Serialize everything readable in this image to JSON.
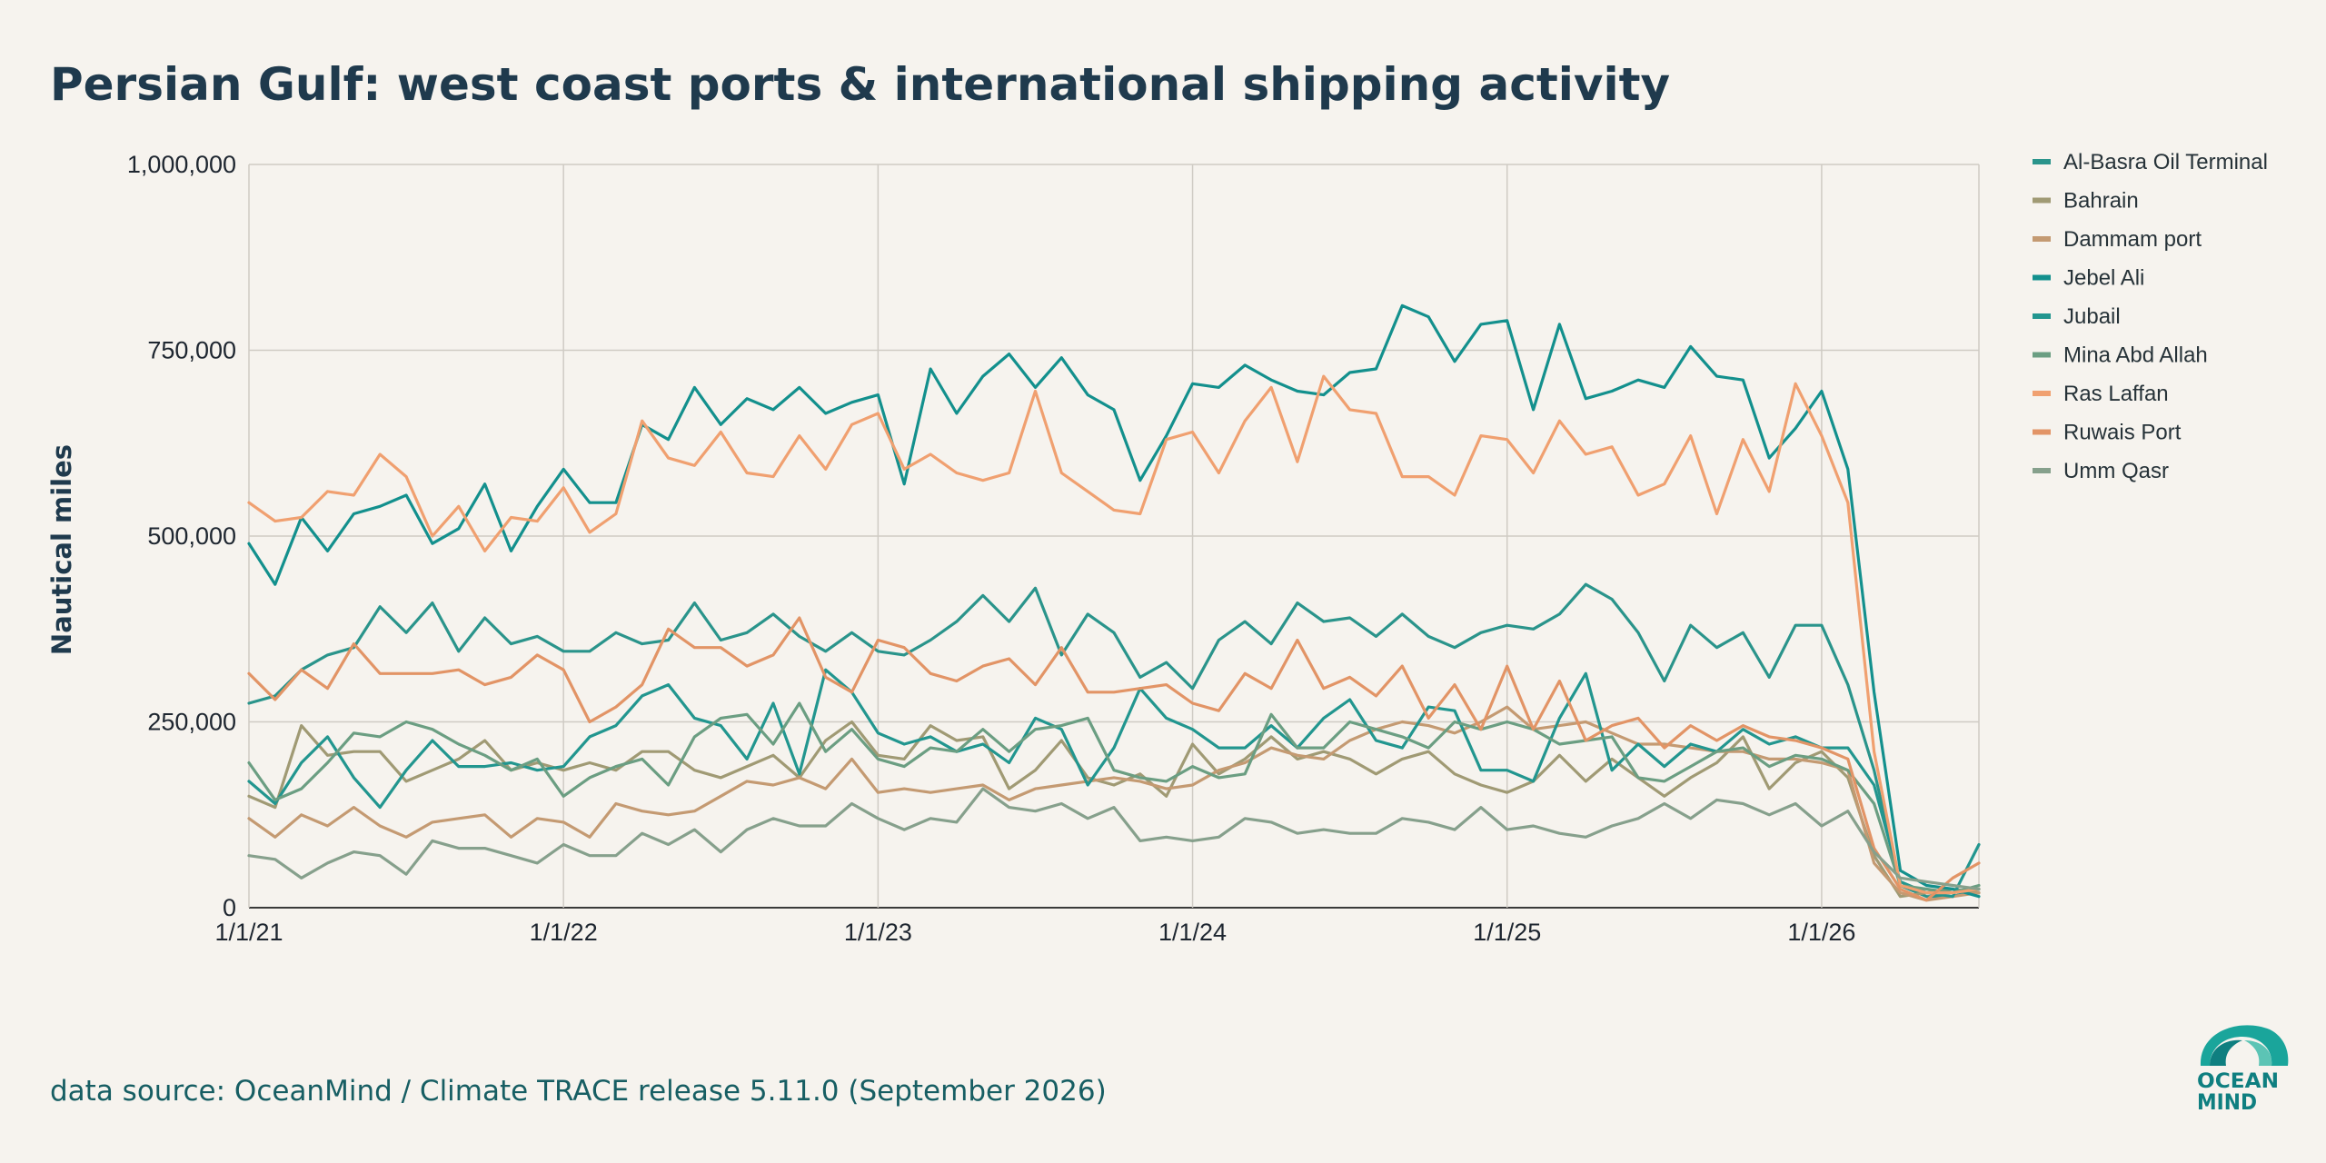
{
  "title": "Persian Gulf: west coast ports & international shipping activity",
  "source": "data source: OceanMind / Climate TRACE release 5.11.0 (September 2026)",
  "logo": {
    "line1": "OCEAN",
    "line2": "MIND",
    "colors": [
      "#0f7f80",
      "#1aa59b",
      "#5cc4b5"
    ]
  },
  "chart_data": {
    "type": "line",
    "title": "Persian Gulf: west coast ports & international shipping activity",
    "xlabel": "",
    "ylabel": "Nautical miles",
    "xlim": [
      "2021-01-01",
      "2026-07-01"
    ],
    "ylim": [
      0,
      1000000
    ],
    "x_ticks": [
      "1/1/21",
      "1/1/22",
      "1/1/23",
      "1/1/24",
      "1/1/25",
      "1/1/26"
    ],
    "y_ticks": [
      "0",
      "250,000",
      "500,000",
      "750,000",
      "1,000,000"
    ],
    "grid": true,
    "legend": "right",
    "x_start": "2021-01",
    "x_step": "1 month",
    "series": [
      {
        "name": "Al-Basra Oil Terminal",
        "color": "#2a948b",
        "values": [
          275000,
          285000,
          320000,
          340000,
          350000,
          405000,
          370000,
          410000,
          345000,
          390000,
          355000,
          365000,
          345000,
          345000,
          370000,
          355000,
          360000,
          410000,
          360000,
          370000,
          395000,
          365000,
          345000,
          370000,
          345000,
          340000,
          360000,
          385000,
          420000,
          385000,
          430000,
          340000,
          395000,
          370000,
          310000,
          330000,
          295000,
          360000,
          385000,
          355000,
          410000,
          385000,
          390000,
          365000,
          395000,
          365000,
          350000,
          370000,
          380000,
          375000,
          395000,
          435000,
          415000,
          370000,
          305000,
          380000,
          350000,
          370000,
          310000,
          380000,
          380000,
          300000,
          185000,
          30000,
          15000,
          15000,
          25000
        ]
      },
      {
        "name": "Bahrain",
        "color": "#a09a74",
        "values": [
          150000,
          135000,
          245000,
          205000,
          210000,
          210000,
          170000,
          185000,
          200000,
          225000,
          185000,
          195000,
          185000,
          195000,
          185000,
          210000,
          210000,
          185000,
          175000,
          190000,
          205000,
          175000,
          225000,
          250000,
          205000,
          200000,
          245000,
          225000,
          230000,
          160000,
          185000,
          225000,
          175000,
          165000,
          180000,
          150000,
          220000,
          180000,
          200000,
          230000,
          200000,
          210000,
          200000,
          180000,
          200000,
          210000,
          180000,
          165000,
          155000,
          170000,
          205000,
          170000,
          200000,
          175000,
          150000,
          175000,
          195000,
          230000,
          160000,
          195000,
          210000,
          175000,
          70000,
          15000,
          20000,
          25000,
          20000
        ]
      },
      {
        "name": "Dammam port",
        "color": "#c49a72",
        "values": [
          120000,
          95000,
          125000,
          110000,
          135000,
          110000,
          95000,
          115000,
          120000,
          125000,
          95000,
          120000,
          115000,
          95000,
          140000,
          130000,
          125000,
          130000,
          150000,
          170000,
          165000,
          175000,
          160000,
          200000,
          155000,
          160000,
          155000,
          160000,
          165000,
          145000,
          160000,
          165000,
          170000,
          175000,
          170000,
          160000,
          165000,
          185000,
          195000,
          215000,
          205000,
          200000,
          225000,
          240000,
          250000,
          245000,
          235000,
          250000,
          270000,
          240000,
          245000,
          250000,
          235000,
          220000,
          220000,
          215000,
          210000,
          210000,
          200000,
          200000,
          195000,
          185000,
          60000,
          20000,
          10000,
          15000,
          20000
        ]
      },
      {
        "name": "Jebel Ali",
        "color": "#13908d",
        "values": [
          490000,
          435000,
          525000,
          480000,
          530000,
          540000,
          555000,
          490000,
          510000,
          570000,
          480000,
          540000,
          590000,
          545000,
          545000,
          650000,
          630000,
          700000,
          650000,
          685000,
          670000,
          700000,
          665000,
          680000,
          690000,
          570000,
          725000,
          665000,
          715000,
          745000,
          700000,
          740000,
          690000,
          670000,
          575000,
          635000,
          705000,
          700000,
          730000,
          710000,
          695000,
          690000,
          720000,
          725000,
          810000,
          795000,
          735000,
          785000,
          790000,
          670000,
          785000,
          685000,
          695000,
          710000,
          700000,
          755000,
          715000,
          710000,
          605000,
          645000,
          695000,
          590000,
          290000,
          50000,
          30000,
          25000,
          15000
        ]
      },
      {
        "name": "Jubail",
        "color": "#22968f",
        "values": [
          170000,
          140000,
          195000,
          230000,
          175000,
          135000,
          185000,
          225000,
          190000,
          190000,
          195000,
          185000,
          190000,
          230000,
          245000,
          285000,
          300000,
          255000,
          245000,
          200000,
          275000,
          180000,
          320000,
          290000,
          235000,
          220000,
          230000,
          210000,
          220000,
          195000,
          255000,
          240000,
          165000,
          215000,
          295000,
          255000,
          240000,
          215000,
          215000,
          245000,
          215000,
          255000,
          280000,
          225000,
          215000,
          270000,
          265000,
          185000,
          185000,
          170000,
          255000,
          315000,
          185000,
          220000,
          190000,
          220000,
          210000,
          240000,
          220000,
          230000,
          215000,
          215000,
          165000,
          35000,
          20000,
          15000,
          85000
        ]
      },
      {
        "name": "Mina Abd Allah",
        "color": "#6b9e82",
        "values": [
          195000,
          145000,
          160000,
          195000,
          235000,
          230000,
          250000,
          240000,
          220000,
          205000,
          185000,
          200000,
          150000,
          175000,
          190000,
          200000,
          165000,
          230000,
          255000,
          260000,
          220000,
          275000,
          210000,
          240000,
          200000,
          190000,
          215000,
          210000,
          240000,
          210000,
          240000,
          245000,
          255000,
          185000,
          175000,
          170000,
          190000,
          175000,
          180000,
          260000,
          215000,
          215000,
          250000,
          240000,
          230000,
          215000,
          250000,
          240000,
          250000,
          240000,
          220000,
          225000,
          230000,
          175000,
          170000,
          190000,
          210000,
          215000,
          190000,
          205000,
          200000,
          185000,
          140000,
          30000,
          25000,
          20000,
          30000
        ]
      },
      {
        "name": "Ras Laffan",
        "color": "#f0a070",
        "values": [
          545000,
          520000,
          525000,
          560000,
          555000,
          610000,
          580000,
          500000,
          540000,
          480000,
          525000,
          520000,
          565000,
          505000,
          530000,
          655000,
          605000,
          595000,
          640000,
          585000,
          580000,
          635000,
          590000,
          650000,
          665000,
          590000,
          610000,
          585000,
          575000,
          585000,
          695000,
          585000,
          560000,
          535000,
          530000,
          630000,
          640000,
          585000,
          655000,
          700000,
          600000,
          715000,
          670000,
          665000,
          580000,
          580000,
          555000,
          635000,
          630000,
          585000,
          655000,
          610000,
          620000,
          555000,
          570000,
          635000,
          530000,
          630000,
          560000,
          705000,
          635000,
          545000,
          210000,
          30000,
          20000,
          20000,
          25000
        ]
      },
      {
        "name": "Ruwais Port",
        "color": "#e29466",
        "values": [
          315000,
          280000,
          320000,
          295000,
          355000,
          315000,
          315000,
          315000,
          320000,
          300000,
          310000,
          340000,
          320000,
          250000,
          270000,
          300000,
          375000,
          350000,
          350000,
          325000,
          340000,
          390000,
          310000,
          290000,
          360000,
          350000,
          315000,
          305000,
          325000,
          335000,
          300000,
          350000,
          290000,
          290000,
          295000,
          300000,
          275000,
          265000,
          315000,
          295000,
          360000,
          295000,
          310000,
          285000,
          325000,
          255000,
          300000,
          240000,
          325000,
          240000,
          305000,
          225000,
          245000,
          255000,
          215000,
          245000,
          225000,
          245000,
          230000,
          225000,
          215000,
          200000,
          80000,
          25000,
          10000,
          40000,
          60000
        ]
      },
      {
        "name": "Umm Qasr",
        "color": "#86a08c",
        "values": [
          70000,
          65000,
          40000,
          60000,
          75000,
          70000,
          45000,
          90000,
          80000,
          80000,
          70000,
          60000,
          85000,
          70000,
          70000,
          100000,
          85000,
          105000,
          75000,
          105000,
          120000,
          110000,
          110000,
          140000,
          120000,
          105000,
          120000,
          115000,
          160000,
          135000,
          130000,
          140000,
          120000,
          135000,
          90000,
          95000,
          90000,
          95000,
          120000,
          115000,
          100000,
          105000,
          100000,
          100000,
          120000,
          115000,
          105000,
          135000,
          105000,
          110000,
          100000,
          95000,
          110000,
          120000,
          140000,
          120000,
          145000,
          140000,
          125000,
          140000,
          110000,
          130000,
          75000,
          40000,
          35000,
          30000,
          25000
        ]
      }
    ]
  }
}
